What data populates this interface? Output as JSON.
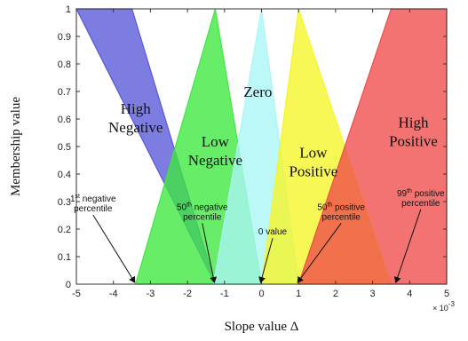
{
  "chart_data": {
    "type": "area",
    "xlabel": "Slope value Δ",
    "ylabel": "Membership value",
    "xlim": [
      -5,
      5
    ],
    "ylim": [
      0,
      1
    ],
    "x_ticks": [
      -5,
      -4,
      -3,
      -2,
      -1,
      0,
      1,
      2,
      3,
      4,
      5
    ],
    "y_ticks": [
      0,
      0.1,
      0.2,
      0.3,
      0.4,
      0.5,
      0.6,
      0.7,
      0.8,
      0.9,
      1
    ],
    "x_exponent": "× 10",
    "x_exponent_power": "-3",
    "grid": false,
    "sets": [
      {
        "label_lines": [
          "High",
          "Negative"
        ],
        "color": "#5858d8",
        "points": [
          [
            -5,
            1
          ],
          [
            -3.5,
            1
          ],
          [
            -1.25,
            0
          ]
        ],
        "label_at": [
          -3.4,
          0.62
        ]
      },
      {
        "label_lines": [
          "Low",
          "Negative"
        ],
        "color": "#3ee83e",
        "points": [
          [
            -3.4,
            0
          ],
          [
            -1.25,
            1
          ],
          [
            0,
            0
          ]
        ],
        "label_at": [
          -1.25,
          0.5
        ]
      },
      {
        "label_lines": [
          "Zero"
        ],
        "color": "#aaf6f6",
        "points": [
          [
            -1.3,
            0
          ],
          [
            0,
            1
          ],
          [
            1,
            0
          ]
        ],
        "label_at": [
          -0.1,
          0.68
        ]
      },
      {
        "label_lines": [
          "Low",
          "Positive"
        ],
        "color": "#f5f525",
        "points": [
          [
            0,
            0
          ],
          [
            1,
            1
          ],
          [
            3.5,
            0
          ]
        ],
        "label_at": [
          1.4,
          0.46
        ]
      },
      {
        "label_lines": [
          "High",
          "Positive"
        ],
        "color": "#f04c4c",
        "points": [
          [
            1,
            0
          ],
          [
            3.5,
            1
          ],
          [
            5,
            1
          ],
          [
            5,
            0
          ]
        ],
        "label_at": [
          4.1,
          0.57
        ]
      }
    ],
    "annotations": [
      {
        "lines": [
          "1",
          "negative",
          "percentile"
        ],
        "sup": "st",
        "x": -3.4,
        "text_at": [
          -4.55,
          0.3
        ]
      },
      {
        "lines": [
          "50",
          "negative",
          "percentile"
        ],
        "sup": "th",
        "x": -1.25,
        "text_at": [
          -1.6,
          0.27
        ]
      },
      {
        "lines": [
          "0 value"
        ],
        "sup": "",
        "x": 0,
        "text_at": [
          0.3,
          0.18
        ]
      },
      {
        "lines": [
          "50",
          "positive",
          "percentile"
        ],
        "sup": "th",
        "x": 1,
        "text_at": [
          2.15,
          0.27
        ]
      },
      {
        "lines": [
          "99",
          "positive",
          "percentile"
        ],
        "sup": "th",
        "x": 3.65,
        "text_at": [
          4.3,
          0.32
        ]
      }
    ]
  }
}
